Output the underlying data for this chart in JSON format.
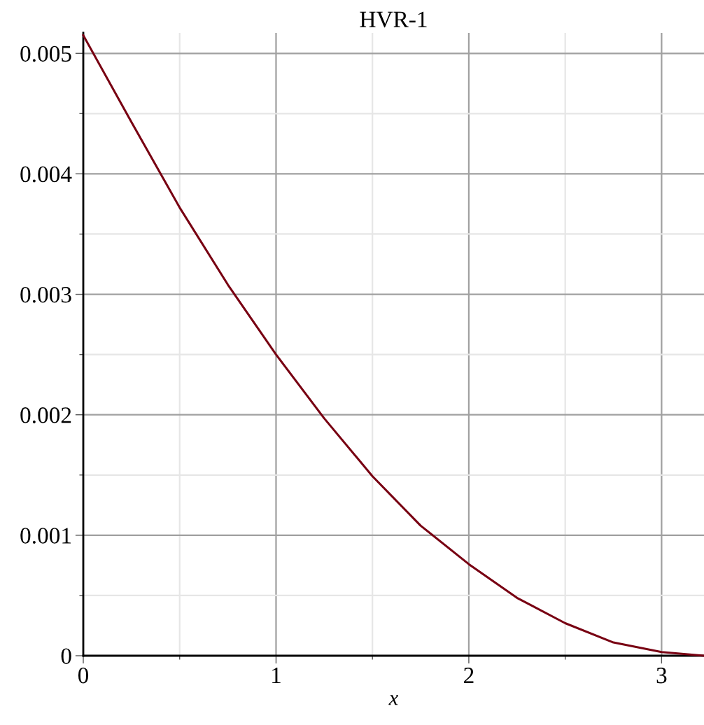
{
  "chart_data": {
    "type": "line",
    "title": "HVR-1",
    "xlabel": "x",
    "series": [
      {
        "color": "#780012",
        "x": [
          0,
          0.25,
          0.5,
          0.75,
          1,
          1.25,
          1.5,
          1.75,
          2,
          2.25,
          2.5,
          2.75,
          3,
          3.22
        ],
        "values": [
          0.00515,
          0.00443,
          0.00372,
          0.00308,
          0.0025,
          0.00197,
          0.00149,
          0.00108,
          0.00076,
          0.00048,
          0.00027,
          0.00011,
          3e-05,
          0
        ]
      }
    ],
    "xlim": [
      0,
      3.22
    ],
    "ylim": [
      0,
      0.00517
    ],
    "xticks": [
      0,
      1,
      2,
      3
    ],
    "yticks": [
      0,
      0.001,
      0.002,
      0.003,
      0.004,
      0.005
    ],
    "grid": true,
    "marker": "none",
    "line_style": "solid"
  }
}
